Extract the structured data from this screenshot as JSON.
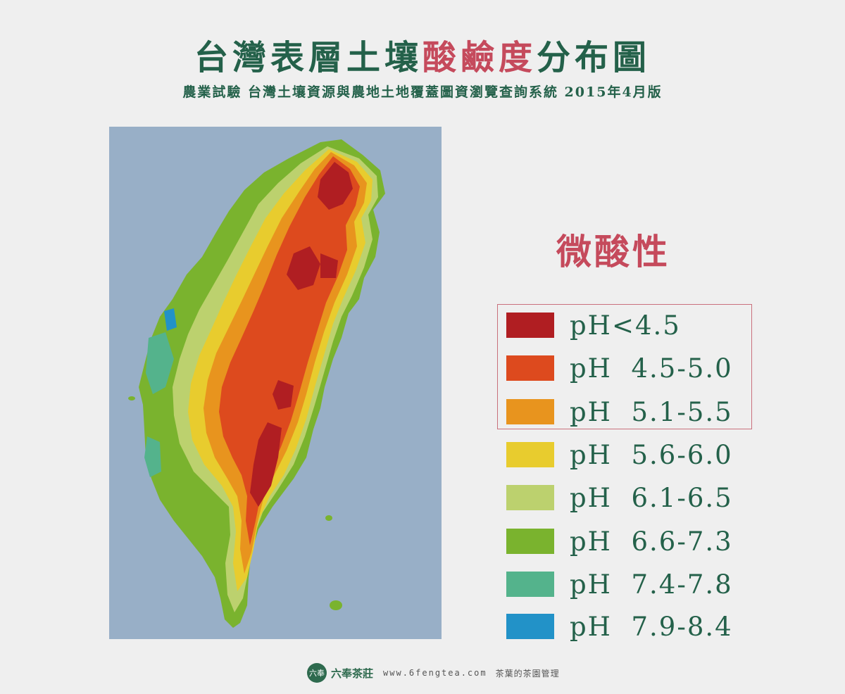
{
  "header": {
    "title_part1": "台灣表層土壤",
    "title_accent": "酸鹼度",
    "title_part2": "分布圖",
    "subtitle": "農業試驗 台灣土壤資源與農地土地覆蓋圖資瀏覽查詢系統 2015年4月版"
  },
  "side_label": "微酸性",
  "legend": [
    {
      "label": "pH<4.5",
      "color": "#b01e22"
    },
    {
      "label": "pH  4.5-5.0",
      "color": "#dd4a1e"
    },
    {
      "label": "pH  5.1-5.5",
      "color": "#e8941e"
    },
    {
      "label": "pH  5.6-6.0",
      "color": "#e8cc2e"
    },
    {
      "label": "pH  6.1-6.5",
      "color": "#bcd16e"
    },
    {
      "label": "pH  6.6-7.3",
      "color": "#7ab32e"
    },
    {
      "label": "pH  7.4-7.8",
      "color": "#54b38c"
    },
    {
      "label": "pH  7.9-8.4",
      "color": "#2292c8"
    }
  ],
  "map": {
    "sea_color": "#98afc7"
  },
  "footer": {
    "logo_icon": "六奉",
    "brand": "六奉茶莊",
    "website": "www.6fengtea.com",
    "tagline": "茶葉的茶園管理"
  }
}
